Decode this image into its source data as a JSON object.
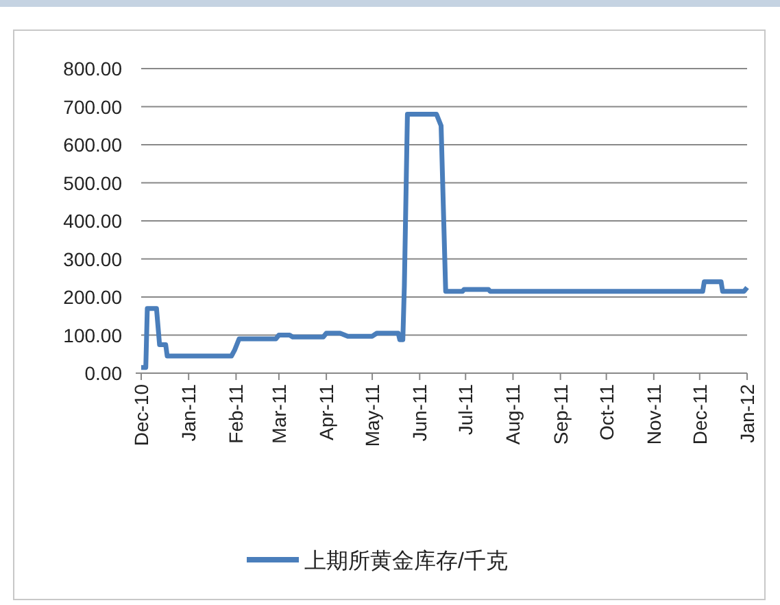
{
  "chart_data": {
    "type": "line",
    "legend": "bottom",
    "grid": "y",
    "marker": "none",
    "line_style": "solid",
    "xlim": [
      "2010-12-01",
      "2012-01-01"
    ],
    "xticks": [
      {
        "value": "2010-12-01",
        "label": "Dec-10"
      },
      {
        "value": "2011-01-01",
        "label": "Jan-11"
      },
      {
        "value": "2011-02-01",
        "label": "Feb-11"
      },
      {
        "value": "2011-03-01",
        "label": "Mar-11"
      },
      {
        "value": "2011-04-01",
        "label": "Apr-11"
      },
      {
        "value": "2011-05-01",
        "label": "May-11"
      },
      {
        "value": "2011-06-01",
        "label": "Jun-11"
      },
      {
        "value": "2011-07-01",
        "label": "Jul-11"
      },
      {
        "value": "2011-08-01",
        "label": "Aug-11"
      },
      {
        "value": "2011-09-01",
        "label": "Sep-11"
      },
      {
        "value": "2011-10-01",
        "label": "Oct-11"
      },
      {
        "value": "2011-11-01",
        "label": "Nov-11"
      },
      {
        "value": "2011-12-01",
        "label": "Dec-11"
      },
      {
        "value": "2012-01-01",
        "label": "Jan-12"
      }
    ],
    "ylim": [
      0,
      800
    ],
    "yticks": [
      {
        "value": 0,
        "label": "0.00"
      },
      {
        "value": 100,
        "label": "100.00"
      },
      {
        "value": 200,
        "label": "200.00"
      },
      {
        "value": 300,
        "label": "300.00"
      },
      {
        "value": 400,
        "label": "400.00"
      },
      {
        "value": 500,
        "label": "500.00"
      },
      {
        "value": 600,
        "label": "600.00"
      },
      {
        "value": 700,
        "label": "700.00"
      },
      {
        "value": 800,
        "label": "800.00"
      }
    ],
    "x": [
      "2010-12-01",
      "2010-12-04",
      "2010-12-05",
      "2010-12-11",
      "2010-12-13",
      "2010-12-17",
      "2010-12-18",
      "2011-01-29",
      "2011-01-31",
      "2011-02-03",
      "2011-02-27",
      "2011-03-01",
      "2011-03-08",
      "2011-03-10",
      "2011-03-30",
      "2011-04-01",
      "2011-04-10",
      "2011-04-15",
      "2011-05-01",
      "2011-05-04",
      "2011-05-18",
      "2011-05-19",
      "2011-05-21",
      "2011-05-22",
      "2011-05-24",
      "2011-06-12",
      "2011-06-15",
      "2011-06-18",
      "2011-06-29",
      "2011-06-30",
      "2011-07-16",
      "2011-07-17",
      "2011-12-03",
      "2011-12-04",
      "2011-12-15",
      "2011-12-16",
      "2011-12-30",
      "2012-01-01"
    ],
    "series": [
      {
        "name": "上期所黄金库存/千克",
        "color": "#4a7ebb",
        "values": [
          15,
          15,
          170,
          170,
          75,
          75,
          45,
          45,
          60,
          90,
          90,
          100,
          100,
          95,
          95,
          105,
          105,
          97,
          97,
          105,
          105,
          88,
          88,
          230,
          680,
          680,
          650,
          215,
          215,
          220,
          220,
          215,
          215,
          240,
          240,
          215,
          215,
          225
        ]
      }
    ]
  }
}
